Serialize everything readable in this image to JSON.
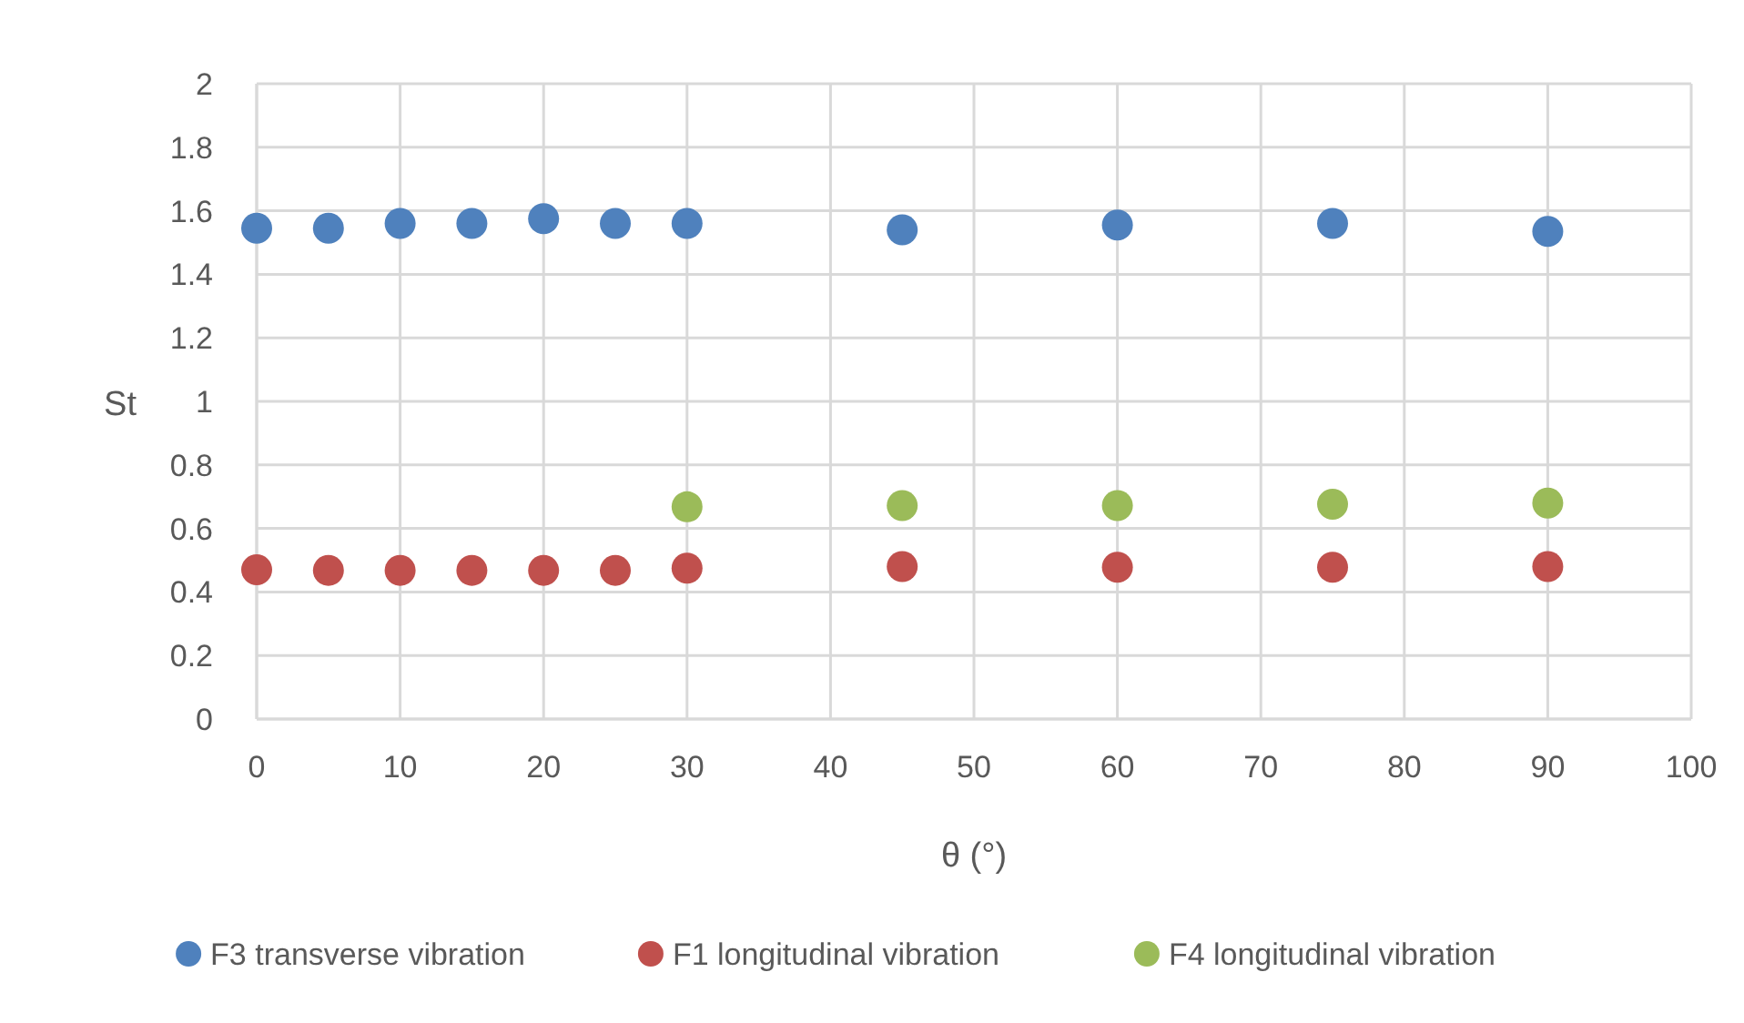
{
  "chart_data": {
    "type": "scatter",
    "xlabel": "θ (°)",
    "ylabel": "St",
    "xlim": [
      0,
      100
    ],
    "xticks": [
      0,
      10,
      20,
      30,
      40,
      50,
      60,
      70,
      80,
      90,
      100
    ],
    "ylim": [
      0,
      2
    ],
    "yticks": [
      0,
      0.2,
      0.4,
      0.6,
      0.8,
      1,
      1.2,
      1.4,
      1.6,
      1.8,
      2
    ],
    "grid": true,
    "legend": "bottom",
    "marker": "circle",
    "series": [
      {
        "name": "F3 transverse vibration",
        "color": "#4f81bd",
        "x": [
          0,
          5,
          10,
          15,
          20,
          25,
          30,
          45,
          60,
          75,
          90
        ],
        "values": [
          1.545,
          1.545,
          1.56,
          1.56,
          1.575,
          1.56,
          1.56,
          1.54,
          1.555,
          1.56,
          1.535
        ]
      },
      {
        "name": "F1 longitudinal vibration",
        "color": "#c0504d",
        "x": [
          0,
          5,
          10,
          15,
          20,
          25,
          30,
          45,
          60,
          75,
          90
        ],
        "values": [
          0.47,
          0.468,
          0.468,
          0.468,
          0.468,
          0.468,
          0.475,
          0.48,
          0.478,
          0.478,
          0.48
        ]
      },
      {
        "name": "F4 longitudinal vibration",
        "color": "#9bbb59",
        "x": [
          30,
          45,
          60,
          75,
          90
        ],
        "values": [
          0.668,
          0.672,
          0.672,
          0.676,
          0.68
        ]
      }
    ]
  }
}
